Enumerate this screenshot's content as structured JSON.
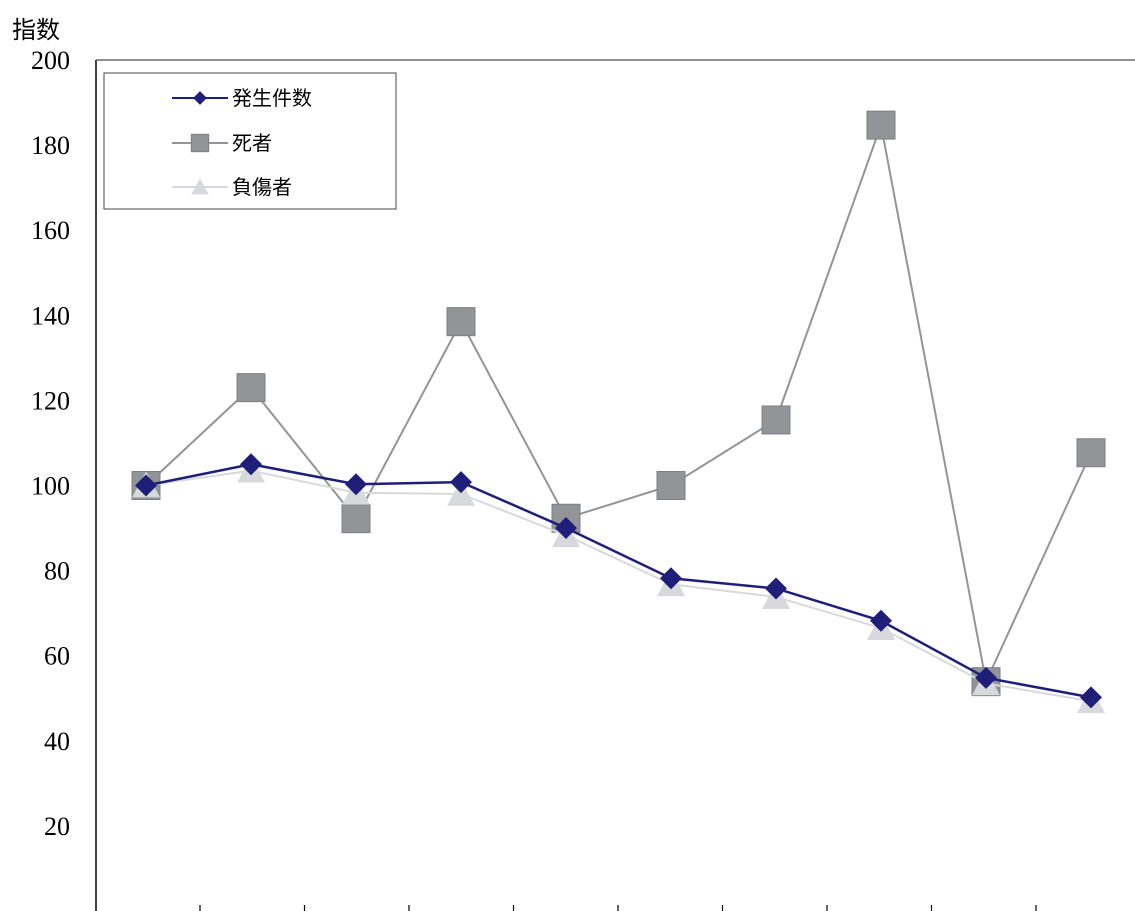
{
  "chart_data": {
    "type": "line",
    "ylabel": "指数",
    "ylim": [
      0,
      200
    ],
    "yticks": [
      20,
      40,
      60,
      80,
      100,
      120,
      140,
      160,
      180,
      200
    ],
    "x_count": 10,
    "grid": false,
    "legend_position": "top-left",
    "series": [
      {
        "name": "発生件数",
        "color": "#1f1f7a",
        "marker": "diamond",
        "values": [
          100,
          105,
          100.3,
          100.8,
          90,
          78.2,
          75.8,
          68.2,
          54.8,
          50.2
        ]
      },
      {
        "name": "死者",
        "color": "#929497",
        "marker": "square",
        "values": [
          100,
          123,
          92.2,
          138.5,
          92.3,
          100,
          115.4,
          184.7,
          53.9,
          107.7
        ]
      },
      {
        "name": "負傷者",
        "color": "#d8d9dc",
        "marker": "triangle",
        "values": [
          100,
          103.5,
          98.3,
          98,
          88.3,
          76.8,
          73.8,
          66.5,
          53.5,
          49.3
        ]
      }
    ]
  }
}
